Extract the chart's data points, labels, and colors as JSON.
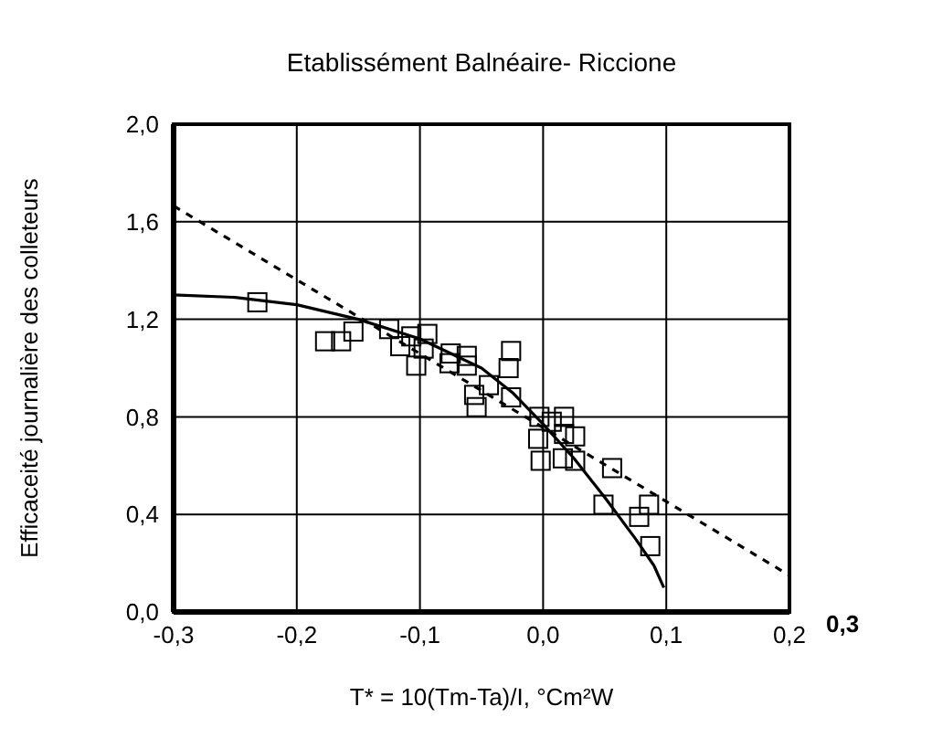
{
  "chart_data": {
    "type": "scatter",
    "title": "Etablissément Balnéaire- Riccione",
    "xlabel": "T* = 10(Tm-Ta)/I, °Cm²W",
    "ylabel": "Efficaceité journalière des colleteurs",
    "annotations": [
      "0,3"
    ],
    "xlim": [
      -0.3,
      0.2
    ],
    "xticks": [
      {
        "value": -0.3,
        "label": "-0,3"
      },
      {
        "value": -0.2,
        "label": "-0,2"
      },
      {
        "value": -0.1,
        "label": "-0,1"
      },
      {
        "value": 0,
        "label": "0,0"
      },
      {
        "value": 0.1,
        "label": "0,1"
      },
      {
        "value": 0.2,
        "label": "0,2"
      }
    ],
    "ylim": [
      0,
      2
    ],
    "yticks": [
      {
        "value": 0,
        "label": "0,0"
      },
      {
        "value": 0.4,
        "label": "0,4"
      },
      {
        "value": 0.8,
        "label": "0,8"
      },
      {
        "value": 1.2,
        "label": "1,2"
      },
      {
        "value": 1.6,
        "label": "1,6"
      },
      {
        "value": 2,
        "label": "2,0"
      }
    ],
    "grid": true,
    "series": [
      {
        "marker": "square",
        "color": "#000000",
        "x": [
          -0.232,
          -0.177,
          -0.164,
          -0.154,
          -0.125,
          -0.116,
          -0.107,
          -0.094,
          -0.103,
          -0.097,
          -0.075,
          -0.062,
          -0.076,
          -0.062,
          -0.026,
          -0.028,
          -0.044,
          -0.056,
          -0.054,
          -0.026,
          -0.003,
          -0.004,
          -0.002,
          0.007,
          0.017,
          0.017,
          0.026,
          0.016,
          0.026,
          0.056,
          0.049,
          0.078,
          0.086,
          0.087
        ],
        "values": [
          1.27,
          1.11,
          1.11,
          1.15,
          1.16,
          1.09,
          1.13,
          1.14,
          1.01,
          1.08,
          1.06,
          1.05,
          1.02,
          1.01,
          1.07,
          1.0,
          0.93,
          0.89,
          0.84,
          0.88,
          0.8,
          0.71,
          0.62,
          0.78,
          0.8,
          0.73,
          0.72,
          0.63,
          0.62,
          0.59,
          0.44,
          0.39,
          0.44,
          0.27
        ]
      },
      {
        "type": "line",
        "marker": "none",
        "line_style": "solid",
        "color": "#000000",
        "x": [
          -0.3,
          -0.25,
          -0.2,
          -0.15,
          -0.1,
          -0.075,
          -0.05,
          -0.025,
          0,
          0.025,
          0.05,
          0.075,
          0.09,
          0.098
        ],
        "values": [
          1.3,
          1.29,
          1.26,
          1.2,
          1.12,
          1.06,
          1.0,
          0.9,
          0.77,
          0.63,
          0.47,
          0.3,
          0.19,
          0.1
        ]
      },
      {
        "type": "line",
        "marker": "none",
        "line_style": "dashed",
        "color": "#000000",
        "x": [
          -0.3,
          0.2
        ],
        "values": [
          1.665,
          0.15
        ]
      }
    ]
  }
}
